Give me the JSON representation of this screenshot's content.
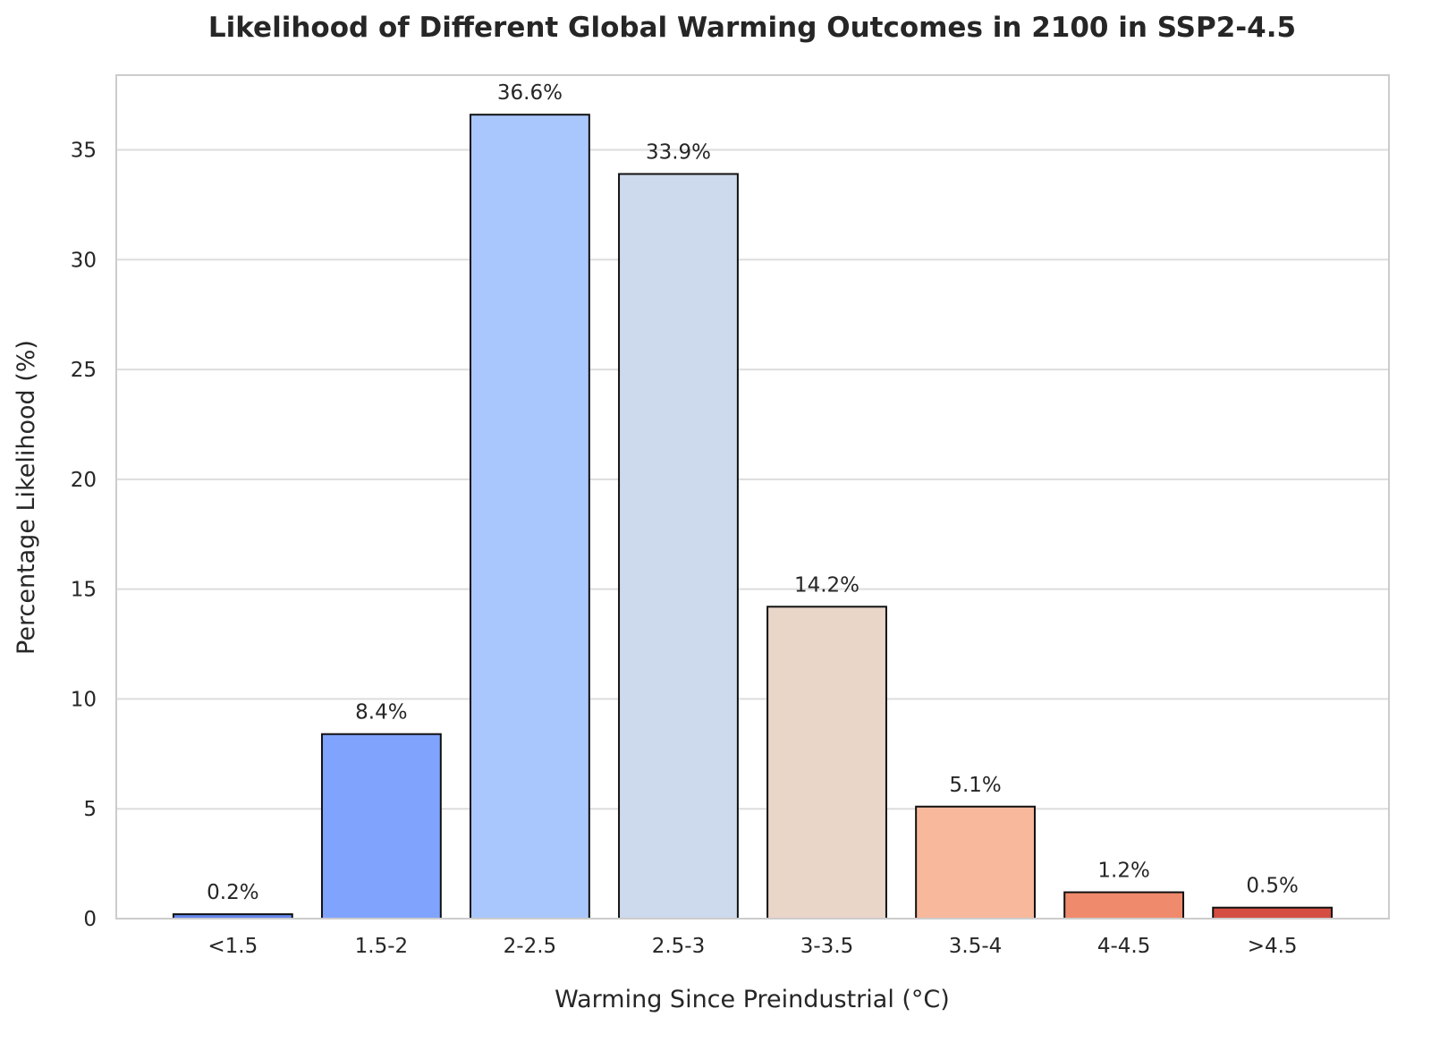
{
  "chart_data": {
    "type": "bar",
    "title": "Likelihood of Different Global Warming Outcomes in 2100 in SSP2-4.5",
    "xlabel": "Warming Since Preindustrial (°C)",
    "ylabel": "Percentage Likelihood (%)",
    "categories": [
      "<1.5",
      "1.5-2",
      "2-2.5",
      "2.5-3",
      "3-3.5",
      "3.5-4",
      "4-4.5",
      ">4.5"
    ],
    "values": [
      0.2,
      8.4,
      36.6,
      33.9,
      14.2,
      5.1,
      1.2,
      0.5
    ],
    "data_labels": [
      "0.2%",
      "8.4%",
      "36.6%",
      "33.9%",
      "14.2%",
      "5.1%",
      "1.2%",
      "0.5%"
    ],
    "colors": [
      "#6788ee",
      "#80a3fe",
      "#aac7fd",
      "#cdd9ec",
      "#ead5c9",
      "#f7b89c",
      "#f08a6c",
      "#d44e41"
    ],
    "yticks": [
      0,
      5,
      10,
      15,
      20,
      25,
      30,
      35
    ],
    "ylim": [
      0,
      38.4
    ],
    "grid": true,
    "legend": "none"
  }
}
